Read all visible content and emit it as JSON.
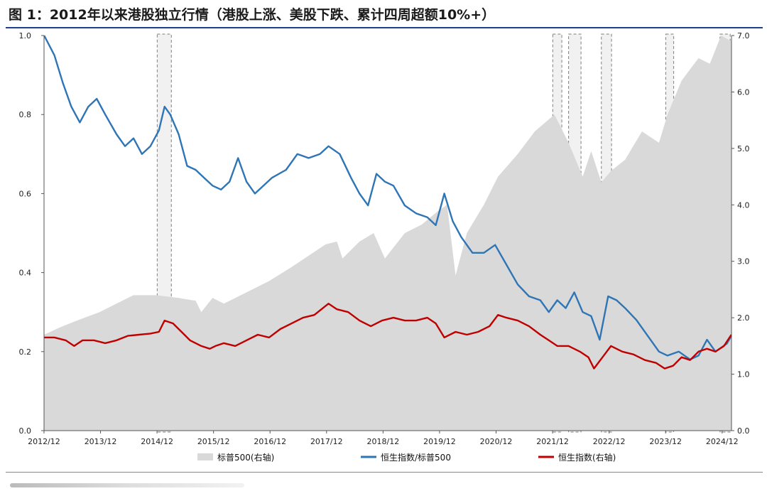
{
  "title": "图 1：2012年以来港股独立行情（港股上涨、美股下跌、累计四周超额10%+）",
  "chart_data": {
    "type": "line",
    "title": "图 1：2012年以来港股独立行情（港股上涨、美股下跌、累计四周超额10%+）",
    "x_ticks": [
      "2012/12",
      "2013/12",
      "2014/12",
      "2015/12",
      "2016/12",
      "2017/12",
      "2018/12",
      "2019/12",
      "2020/12",
      "2021/12",
      "2022/12",
      "2023/12",
      "2024/12"
    ],
    "x_range": [
      2012.917,
      2025.083
    ],
    "y_left": {
      "ticks": [
        "0.0",
        "0.2",
        "0.4",
        "0.6",
        "0.8",
        "1.0"
      ],
      "range": [
        0,
        1.0
      ]
    },
    "y_right": {
      "ticks": [
        "0.0",
        "1.0",
        "2.0",
        "3.0",
        "4.0",
        "5.0",
        "6.0",
        "7.0"
      ],
      "range": [
        0,
        7.0
      ]
    },
    "legend_position": "bottom",
    "series": [
      {
        "name": "标普500(右轴)",
        "kind": "area",
        "axis": "right",
        "color": "#d9d9d9",
        "points": [
          [
            2012.92,
            1.7
          ],
          [
            2013.2,
            1.83
          ],
          [
            2013.5,
            1.95
          ],
          [
            2013.9,
            2.1
          ],
          [
            2014.2,
            2.25
          ],
          [
            2014.5,
            2.4
          ],
          [
            2014.9,
            2.4
          ],
          [
            2015.3,
            2.35
          ],
          [
            2015.6,
            2.3
          ],
          [
            2015.7,
            2.1
          ],
          [
            2015.9,
            2.35
          ],
          [
            2016.1,
            2.25
          ],
          [
            2016.5,
            2.45
          ],
          [
            2016.9,
            2.65
          ],
          [
            2017.3,
            2.9
          ],
          [
            2017.9,
            3.3
          ],
          [
            2018.1,
            3.35
          ],
          [
            2018.2,
            3.05
          ],
          [
            2018.5,
            3.35
          ],
          [
            2018.75,
            3.5
          ],
          [
            2018.95,
            3.05
          ],
          [
            2019.3,
            3.5
          ],
          [
            2019.6,
            3.65
          ],
          [
            2019.9,
            3.9
          ],
          [
            2020.05,
            4.0
          ],
          [
            2020.2,
            2.75
          ],
          [
            2020.4,
            3.5
          ],
          [
            2020.7,
            4.0
          ],
          [
            2020.95,
            4.5
          ],
          [
            2021.3,
            4.9
          ],
          [
            2021.6,
            5.3
          ],
          [
            2021.95,
            5.6
          ],
          [
            2022.2,
            5.1
          ],
          [
            2022.45,
            4.5
          ],
          [
            2022.6,
            4.95
          ],
          [
            2022.78,
            4.4
          ],
          [
            2022.95,
            4.6
          ],
          [
            2023.2,
            4.8
          ],
          [
            2023.5,
            5.3
          ],
          [
            2023.8,
            5.1
          ],
          [
            2023.95,
            5.6
          ],
          [
            2024.2,
            6.2
          ],
          [
            2024.5,
            6.6
          ],
          [
            2024.7,
            6.5
          ],
          [
            2024.9,
            7.0
          ],
          [
            2025.08,
            6.9
          ]
        ]
      },
      {
        "name": "恒生指数/标普500",
        "kind": "line",
        "axis": "left",
        "color": "#2e75b6",
        "points": [
          [
            2012.92,
            1.0
          ],
          [
            2013.1,
            0.95
          ],
          [
            2013.25,
            0.88
          ],
          [
            2013.4,
            0.82
          ],
          [
            2013.55,
            0.78
          ],
          [
            2013.7,
            0.82
          ],
          [
            2013.85,
            0.84
          ],
          [
            2014.0,
            0.8
          ],
          [
            2014.2,
            0.75
          ],
          [
            2014.35,
            0.72
          ],
          [
            2014.5,
            0.74
          ],
          [
            2014.65,
            0.7
          ],
          [
            2014.8,
            0.72
          ],
          [
            2014.95,
            0.76
          ],
          [
            2015.05,
            0.82
          ],
          [
            2015.15,
            0.8
          ],
          [
            2015.3,
            0.75
          ],
          [
            2015.45,
            0.67
          ],
          [
            2015.6,
            0.66
          ],
          [
            2015.75,
            0.64
          ],
          [
            2015.9,
            0.62
          ],
          [
            2016.05,
            0.61
          ],
          [
            2016.2,
            0.63
          ],
          [
            2016.35,
            0.69
          ],
          [
            2016.5,
            0.63
          ],
          [
            2016.65,
            0.6
          ],
          [
            2016.8,
            0.62
          ],
          [
            2016.95,
            0.64
          ],
          [
            2017.2,
            0.66
          ],
          [
            2017.4,
            0.7
          ],
          [
            2017.6,
            0.69
          ],
          [
            2017.8,
            0.7
          ],
          [
            2017.95,
            0.72
          ],
          [
            2018.15,
            0.7
          ],
          [
            2018.35,
            0.64
          ],
          [
            2018.5,
            0.6
          ],
          [
            2018.65,
            0.57
          ],
          [
            2018.8,
            0.65
          ],
          [
            2018.95,
            0.63
          ],
          [
            2019.1,
            0.62
          ],
          [
            2019.3,
            0.57
          ],
          [
            2019.5,
            0.55
          ],
          [
            2019.7,
            0.54
          ],
          [
            2019.85,
            0.52
          ],
          [
            2020.0,
            0.6
          ],
          [
            2020.15,
            0.53
          ],
          [
            2020.3,
            0.49
          ],
          [
            2020.5,
            0.45
          ],
          [
            2020.7,
            0.45
          ],
          [
            2020.9,
            0.47
          ],
          [
            2021.1,
            0.42
          ],
          [
            2021.3,
            0.37
          ],
          [
            2021.5,
            0.34
          ],
          [
            2021.7,
            0.33
          ],
          [
            2021.85,
            0.3
          ],
          [
            2022.0,
            0.33
          ],
          [
            2022.15,
            0.31
          ],
          [
            2022.3,
            0.35
          ],
          [
            2022.45,
            0.3
          ],
          [
            2022.6,
            0.29
          ],
          [
            2022.75,
            0.23
          ],
          [
            2022.9,
            0.34
          ],
          [
            2023.05,
            0.33
          ],
          [
            2023.2,
            0.31
          ],
          [
            2023.4,
            0.28
          ],
          [
            2023.6,
            0.24
          ],
          [
            2023.8,
            0.2
          ],
          [
            2023.95,
            0.19
          ],
          [
            2024.15,
            0.2
          ],
          [
            2024.35,
            0.18
          ],
          [
            2024.5,
            0.19
          ],
          [
            2024.65,
            0.23
          ],
          [
            2024.8,
            0.2
          ],
          [
            2025.0,
            0.22
          ],
          [
            2025.08,
            0.24
          ]
        ]
      },
      {
        "name": "恒生指数(右轴)",
        "kind": "line",
        "axis": "right",
        "color": "#c00000",
        "points": [
          [
            2012.92,
            1.65
          ],
          [
            2013.1,
            1.65
          ],
          [
            2013.3,
            1.6
          ],
          [
            2013.45,
            1.5
          ],
          [
            2013.6,
            1.6
          ],
          [
            2013.8,
            1.6
          ],
          [
            2014.0,
            1.55
          ],
          [
            2014.2,
            1.6
          ],
          [
            2014.4,
            1.68
          ],
          [
            2014.6,
            1.7
          ],
          [
            2014.8,
            1.72
          ],
          [
            2014.95,
            1.75
          ],
          [
            2015.05,
            1.95
          ],
          [
            2015.2,
            1.9
          ],
          [
            2015.35,
            1.75
          ],
          [
            2015.5,
            1.6
          ],
          [
            2015.7,
            1.5
          ],
          [
            2015.85,
            1.45
          ],
          [
            2015.95,
            1.5
          ],
          [
            2016.1,
            1.55
          ],
          [
            2016.3,
            1.5
          ],
          [
            2016.5,
            1.6
          ],
          [
            2016.7,
            1.7
          ],
          [
            2016.9,
            1.65
          ],
          [
            2017.1,
            1.8
          ],
          [
            2017.3,
            1.9
          ],
          [
            2017.5,
            2.0
          ],
          [
            2017.7,
            2.05
          ],
          [
            2017.95,
            2.25
          ],
          [
            2018.1,
            2.15
          ],
          [
            2018.3,
            2.1
          ],
          [
            2018.5,
            1.95
          ],
          [
            2018.7,
            1.85
          ],
          [
            2018.9,
            1.95
          ],
          [
            2019.1,
            2.0
          ],
          [
            2019.3,
            1.95
          ],
          [
            2019.5,
            1.95
          ],
          [
            2019.7,
            2.0
          ],
          [
            2019.85,
            1.9
          ],
          [
            2020.0,
            1.65
          ],
          [
            2020.2,
            1.75
          ],
          [
            2020.4,
            1.7
          ],
          [
            2020.6,
            1.75
          ],
          [
            2020.8,
            1.85
          ],
          [
            2020.95,
            2.05
          ],
          [
            2021.1,
            2.0
          ],
          [
            2021.3,
            1.95
          ],
          [
            2021.5,
            1.85
          ],
          [
            2021.7,
            1.7
          ],
          [
            2021.85,
            1.6
          ],
          [
            2022.0,
            1.5
          ],
          [
            2022.2,
            1.5
          ],
          [
            2022.4,
            1.4
          ],
          [
            2022.55,
            1.3
          ],
          [
            2022.65,
            1.1
          ],
          [
            2022.8,
            1.3
          ],
          [
            2022.95,
            1.5
          ],
          [
            2023.15,
            1.4
          ],
          [
            2023.35,
            1.35
          ],
          [
            2023.55,
            1.25
          ],
          [
            2023.75,
            1.2
          ],
          [
            2023.9,
            1.1
          ],
          [
            2024.05,
            1.15
          ],
          [
            2024.2,
            1.3
          ],
          [
            2024.35,
            1.25
          ],
          [
            2024.5,
            1.4
          ],
          [
            2024.65,
            1.45
          ],
          [
            2024.8,
            1.4
          ],
          [
            2024.95,
            1.5
          ],
          [
            2025.08,
            1.7
          ]
        ]
      }
    ],
    "highlight_periods": [
      [
        2014.92,
        2015.17
      ],
      [
        2021.92,
        2022.08
      ],
      [
        2022.2,
        2022.42
      ],
      [
        2022.78,
        2022.96
      ],
      [
        2023.92,
        2024.06
      ],
      [
        2024.88,
        2025.06
      ]
    ]
  }
}
